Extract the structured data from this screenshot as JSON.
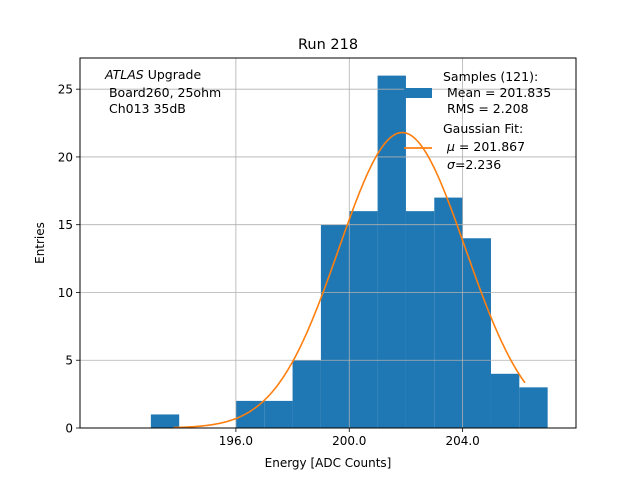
{
  "chart_data": {
    "type": "bar",
    "title": "Run 218",
    "xlabel": "Energy [ADC Counts]",
    "ylabel": "Entries",
    "xlim": [
      190.5,
      208.0
    ],
    "ylim": [
      0,
      27.3
    ],
    "grid": true,
    "xticks": [
      196.0,
      200.0,
      204.0
    ],
    "xtick_labels": [
      "196.0",
      "200.0",
      "204.0"
    ],
    "yticks": [
      0,
      5,
      10,
      15,
      20,
      25
    ],
    "ytick_labels": [
      "0",
      "5",
      "10",
      "15",
      "20",
      "25"
    ],
    "bin_width": 1,
    "bins": [
      {
        "x0": 193,
        "value": 1
      },
      {
        "x0": 194,
        "value": 0
      },
      {
        "x0": 195,
        "value": 0
      },
      {
        "x0": 196,
        "value": 2
      },
      {
        "x0": 197,
        "value": 2
      },
      {
        "x0": 198,
        "value": 5
      },
      {
        "x0": 199,
        "value": 15
      },
      {
        "x0": 200,
        "value": 16
      },
      {
        "x0": 201,
        "value": 26
      },
      {
        "x0": 202,
        "value": 16
      },
      {
        "x0": 203,
        "value": 17
      },
      {
        "x0": 204,
        "value": 14
      },
      {
        "x0": 205,
        "value": 4
      },
      {
        "x0": 206,
        "value": 3
      }
    ],
    "hist_color": "#1f77b4",
    "fit": {
      "amplitude": 21.8,
      "mean": 201.867,
      "sigma": 2.236,
      "x_range": [
        193.8,
        206.2
      ],
      "color": "#ff7f0e"
    },
    "annotation": {
      "line1_italic": "ATLAS",
      "line1_rest": " Upgrade",
      "line2": " Board260, 25ohm",
      "line3": " Ch013 35dB"
    },
    "legend": {
      "position": "top-right",
      "samples_line1": "Samples (121):",
      "samples_line2": " Mean = 201.835",
      "samples_line3": " RMS = 2.208",
      "fit_line1": "Gaussian Fit:",
      "fit_line2_symbol": "μ",
      "fit_line2_rest": " = 201.867",
      "fit_line3_symbol": "σ",
      "fit_line3_rest": "=2.236"
    }
  }
}
